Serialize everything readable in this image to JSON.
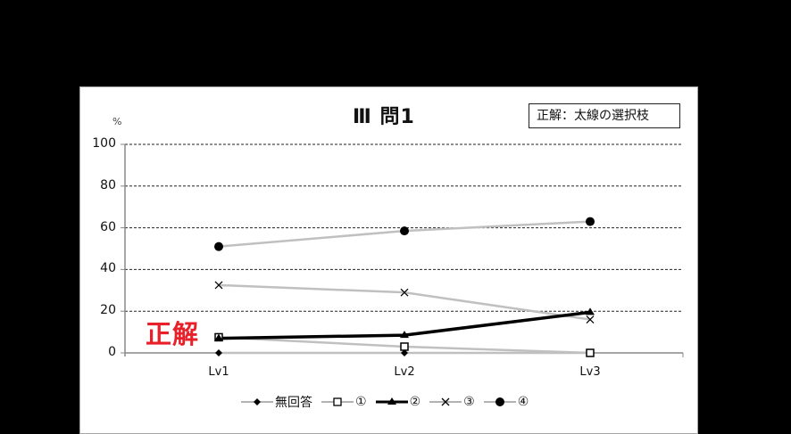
{
  "chart_data": {
    "type": "line",
    "title": "Ⅲ 問1",
    "annotation_box": "正解：太線の選択枝",
    "annotation_highlight": "正解",
    "ylabel": "%",
    "xlabel": "",
    "categories": [
      "Lv1",
      "Lv2",
      "Lv3"
    ],
    "ylim": [
      0,
      100
    ],
    "yticks": [
      "100",
      "80",
      "60",
      "40",
      "20",
      "0"
    ],
    "grid": "horizontal dashed",
    "legend_position": "bottom",
    "series": [
      {
        "name": "無回答",
        "marker": "diamond",
        "color": "#c0c0c0",
        "bold": false,
        "values": [
          0,
          0,
          0
        ]
      },
      {
        "name": "①",
        "marker": "square-open",
        "color": "#c0c0c0",
        "bold": false,
        "values": [
          7.5,
          3,
          0
        ]
      },
      {
        "name": "②",
        "marker": "triangle",
        "color": "#000000",
        "bold": true,
        "values": [
          7,
          8.5,
          19.5
        ]
      },
      {
        "name": "③",
        "marker": "x",
        "color": "#c0c0c0",
        "bold": false,
        "values": [
          32.5,
          29,
          16
        ]
      },
      {
        "name": "④",
        "marker": "circle",
        "color": "#c0c0c0",
        "bold": false,
        "values": [
          51,
          58.5,
          63
        ]
      }
    ]
  }
}
